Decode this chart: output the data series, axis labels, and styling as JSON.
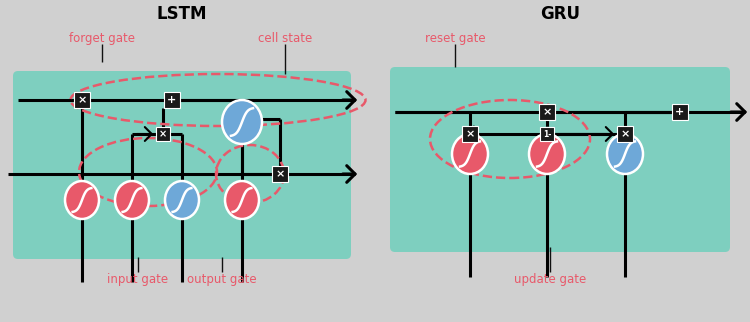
{
  "bg_color": "#d0d0d0",
  "teal_color": "#7ecfbf",
  "red_node_color": "#e8596a",
  "blue_node_color": "#6ea8d8",
  "dashed_red": "#e8596a",
  "line_color": "#111111",
  "label_red": "#e8596a",
  "lstm_title": "LSTM",
  "gru_title": "GRU",
  "lstm_labels": [
    "forget gate",
    "cell state",
    "input gate",
    "output gate"
  ],
  "gru_labels": [
    "reset gate",
    "update gate"
  ],
  "white": "#ffffff"
}
